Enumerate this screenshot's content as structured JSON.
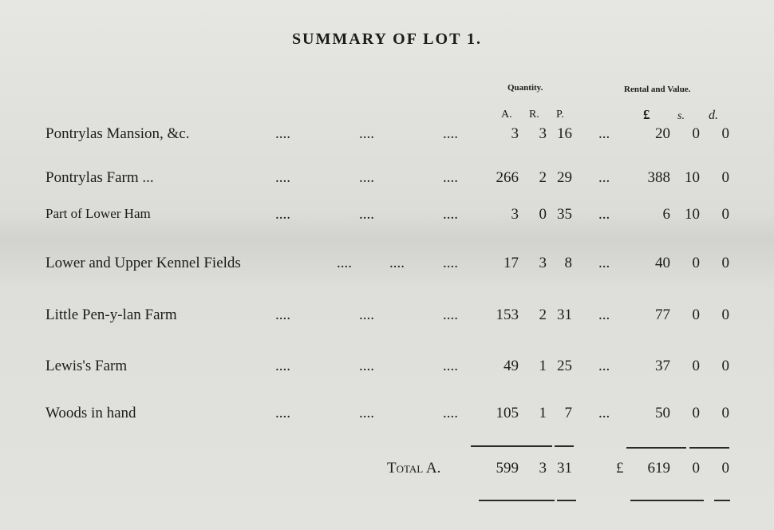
{
  "title": "SUMMARY OF LOT 1.",
  "headers": {
    "quantity": "Quantity.",
    "rental": "Rental and Value.",
    "acres": "A.",
    "roods": "R.",
    "poles": "P.",
    "pounds": "£",
    "shillings": "s.",
    "pence": "d."
  },
  "leader": "....",
  "ellipsis": "...",
  "rows": [
    {
      "label": "Pontrylas Mansion, &c.",
      "a": "3",
      "r": "3",
      "p": "16",
      "l": "20",
      "s": "0",
      "d": "0"
    },
    {
      "label": "Pontrylas Farm ...",
      "a": "266",
      "r": "2",
      "p": "29",
      "l": "388",
      "s": "10",
      "d": "0"
    },
    {
      "label": "Part of Lower Ham",
      "a": "3",
      "r": "0",
      "p": "35",
      "l": "6",
      "s": "10",
      "d": "0"
    },
    {
      "label": "Lower and Upper Kennel Fields",
      "a": "17",
      "r": "3",
      "p": "8",
      "l": "40",
      "s": "0",
      "d": "0"
    },
    {
      "label": "Little Pen-y-lan Farm",
      "a": "153",
      "r": "2",
      "p": "31",
      "l": "77",
      "s": "0",
      "d": "0"
    },
    {
      "label": "Lewis's Farm",
      "a": "49",
      "r": "1",
      "p": "25",
      "l": "37",
      "s": "0",
      "d": "0"
    },
    {
      "label": "Woods in hand",
      "a": "105",
      "r": "1",
      "p": "7",
      "l": "50",
      "s": "0",
      "d": "0"
    }
  ],
  "total": {
    "label": "Total A.",
    "a": "599",
    "r": "3",
    "p": "31",
    "currency": "£",
    "l": "619",
    "s": "0",
    "d": "0"
  }
}
